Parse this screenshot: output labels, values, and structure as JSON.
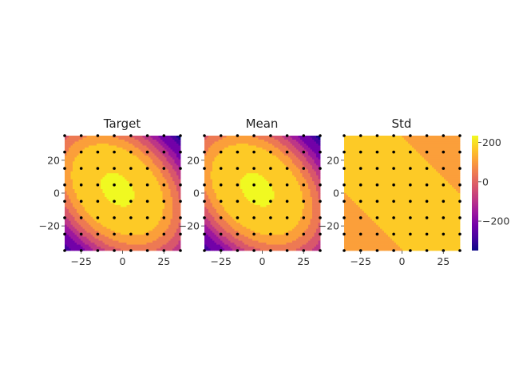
{
  "chart_data": [
    {
      "type": "heatmap",
      "subtype": "filled-contour",
      "title": "Target",
      "xlim": [
        -35,
        35
      ],
      "ylim": [
        -35,
        35
      ],
      "xticks": [
        -25,
        0,
        25
      ],
      "yticks": [
        -20,
        0,
        20
      ],
      "xtick_labels": [
        "−25",
        "0",
        "25"
      ],
      "ytick_labels": [
        "−20",
        "0",
        "20"
      ],
      "field": {
        "peak": 215,
        "center": [
          -3,
          2
        ],
        "axis_angle_deg": -45,
        "long_scale": 34,
        "short_scale": 24
      },
      "levels": [
        -350,
        -300,
        -250,
        -200,
        -150,
        -100,
        -50,
        0,
        50,
        100,
        150,
        200,
        250
      ]
    },
    {
      "type": "heatmap",
      "subtype": "filled-contour",
      "title": "Mean",
      "xlim": [
        -35,
        35
      ],
      "ylim": [
        -35,
        35
      ],
      "xticks": [
        -25,
        0,
        25
      ],
      "yticks": [
        -20,
        0,
        20
      ],
      "xtick_labels": [
        "−25",
        "0",
        "25"
      ],
      "ytick_labels": [
        "−20",
        "0",
        "20"
      ],
      "field": {
        "peak": 215,
        "center": [
          -3,
          2
        ],
        "axis_angle_deg": -45,
        "long_scale": 34,
        "short_scale": 24
      },
      "levels": [
        -350,
        -300,
        -250,
        -200,
        -150,
        -100,
        -50,
        0,
        50,
        100,
        150,
        200,
        250
      ]
    },
    {
      "type": "heatmap",
      "subtype": "filled-contour",
      "title": "Std",
      "xlim": [
        -35,
        35
      ],
      "ylim": [
        -35,
        35
      ],
      "xticks": [
        -25,
        0,
        25
      ],
      "yticks": [
        -20,
        0,
        20
      ],
      "xtick_labels": [
        "−25",
        "0",
        "25"
      ],
      "ytick_labels": [
        "−20",
        "0",
        "20"
      ],
      "band": {
        "center_value": 100,
        "outer_value": 50,
        "axis_angle_deg": -45,
        "half_width": 24
      },
      "levels": [
        -350,
        -300,
        -250,
        -200,
        -150,
        -100,
        -50,
        0,
        50,
        100,
        150,
        200,
        250
      ]
    }
  ],
  "training_points": {
    "x": [
      -35,
      -25,
      -15,
      -5,
      5,
      15,
      25,
      35
    ],
    "y": [
      -35,
      -25,
      -15,
      -5,
      5,
      15,
      25,
      35
    ]
  },
  "colorbar": {
    "colormap": "plasma",
    "range": [
      -350,
      235
    ],
    "ticks": [
      200,
      0,
      -200
    ],
    "tick_labels": [
      "200",
      "0",
      "−200"
    ]
  },
  "colors": {
    "plasma": [
      "#0d0887",
      "#46039f",
      "#7201a8",
      "#9c179e",
      "#bd3786",
      "#d8576b",
      "#ed7953",
      "#fb9f3a",
      "#fdca26",
      "#f0f921"
    ],
    "point": "#000000"
  }
}
